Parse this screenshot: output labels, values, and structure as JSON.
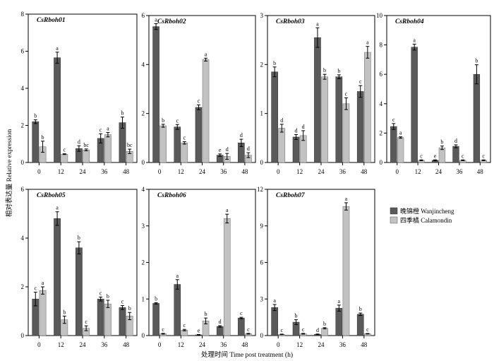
{
  "figure": {
    "ylabel": "相对表达量 Relative expression",
    "xlabel": "处理时间 Time post treatment (h)"
  },
  "legend": {
    "position": "right",
    "entries": [
      {
        "label": "晚锦橙 Wanjincheng",
        "color": "#5a5a5a"
      },
      {
        "label": "四季橘 Calamondin",
        "color": "#c2c2c2"
      }
    ]
  },
  "colors": {
    "series1": "#5a5a5a",
    "series2": "#c2c2c2",
    "axis": "#000000"
  },
  "chart_data": [
    {
      "type": "bar",
      "title": "CsRboh01",
      "categories": [
        "0",
        "12",
        "24",
        "36",
        "48"
      ],
      "ylim": [
        0,
        8
      ],
      "yticks": [
        0,
        2,
        4,
        6,
        8
      ],
      "series": [
        {
          "name": "晚锦橙 Wanjincheng",
          "values": [
            2.2,
            5.65,
            0.75,
            1.3,
            2.15
          ],
          "errors": [
            0.1,
            0.3,
            0.15,
            0.25,
            0.3
          ],
          "labels": [
            "b",
            "a",
            "d",
            "c",
            "b"
          ]
        },
        {
          "name": "四季橘 Calamondin",
          "values": [
            0.85,
            0.45,
            0.68,
            1.5,
            0.6
          ],
          "errors": [
            0.3,
            0.02,
            0.05,
            0.12,
            0.12
          ],
          "labels": [
            "b",
            "c",
            "bc",
            "a",
            "bc"
          ]
        }
      ]
    },
    {
      "type": "bar",
      "title": "CsRboh02",
      "categories": [
        "0",
        "12",
        "24",
        "36",
        "48"
      ],
      "ylim": [
        0,
        6
      ],
      "yticks": [
        0,
        2,
        4,
        6
      ],
      "series": [
        {
          "name": "晚锦橙 Wanjincheng",
          "values": [
            5.55,
            1.45,
            2.25,
            0.3,
            0.8
          ],
          "errors": [
            0.12,
            0.1,
            0.1,
            0.05,
            0.15
          ],
          "labels": [
            "a",
            "c",
            "c",
            "e",
            "d"
          ]
        },
        {
          "name": "四季橘 Calamondin",
          "values": [
            1.5,
            0.8,
            4.2,
            0.25,
            0.3
          ],
          "errors": [
            0.06,
            0.05,
            0.06,
            0.12,
            0.1
          ],
          "labels": [
            "b",
            "c",
            "a",
            "d",
            "d"
          ]
        }
      ]
    },
    {
      "type": "bar",
      "title": "CsRboh03",
      "categories": [
        "0",
        "12",
        "24",
        "36",
        "48"
      ],
      "ylim": [
        0,
        3
      ],
      "yticks": [
        0,
        1,
        2,
        3
      ],
      "series": [
        {
          "name": "晚锦橙 Wanjincheng",
          "values": [
            1.85,
            0.52,
            2.55,
            1.75,
            1.45
          ],
          "errors": [
            0.1,
            0.05,
            0.2,
            0.04,
            0.12
          ],
          "labels": [
            "b",
            "d",
            "a",
            "b",
            "c"
          ]
        },
        {
          "name": "四季橘 Calamondin",
          "values": [
            0.7,
            0.55,
            1.75,
            1.2,
            2.25
          ],
          "errors": [
            0.08,
            0.1,
            0.05,
            0.12,
            0.12
          ],
          "labels": [
            "d",
            "d",
            "b",
            "c",
            "a"
          ]
        }
      ]
    },
    {
      "type": "bar",
      "title": "CsRboh04",
      "categories": [
        "0",
        "12",
        "24",
        "36",
        "48"
      ],
      "ylim": [
        0,
        10
      ],
      "yticks": [
        0,
        2,
        4,
        6,
        8,
        10
      ],
      "series": [
        {
          "name": "晚锦橙 Wanjincheng",
          "values": [
            2.45,
            7.85,
            0.15,
            1.1,
            6.0
          ],
          "errors": [
            0.2,
            0.2,
            0.03,
            0.1,
            0.65
          ],
          "labels": [
            "c",
            "a",
            "e",
            "d",
            "b"
          ]
        },
        {
          "name": "四季橘 Calamondin",
          "values": [
            1.7,
            0.15,
            1.0,
            0.15,
            0.15
          ],
          "errors": [
            0.05,
            0.03,
            0.12,
            0.03,
            0.03
          ],
          "labels": [
            "a",
            "c",
            "b",
            "c",
            "c"
          ]
        }
      ]
    },
    {
      "type": "bar",
      "title": "CsRboh05",
      "categories": [
        "0",
        "12",
        "24",
        "36",
        "48"
      ],
      "ylim": [
        0,
        6
      ],
      "yticks": [
        0,
        2,
        4,
        6
      ],
      "series": [
        {
          "name": "晚锦橙 Wanjincheng",
          "values": [
            1.5,
            4.8,
            3.6,
            1.5,
            1.15
          ],
          "errors": [
            0.28,
            0.28,
            0.25,
            0.08,
            0.08
          ],
          "labels": [
            "c",
            "a",
            "b",
            "c",
            "c"
          ]
        },
        {
          "name": "四季橘 Calamondin",
          "values": [
            1.85,
            0.65,
            0.3,
            1.3,
            0.8
          ],
          "errors": [
            0.15,
            0.15,
            0.1,
            0.15,
            0.15
          ],
          "labels": [
            "a",
            "b",
            "c",
            "b",
            "b"
          ]
        }
      ]
    },
    {
      "type": "bar",
      "title": "CsRboh06",
      "categories": [
        "0",
        "12",
        "24",
        "36",
        "48"
      ],
      "ylim": [
        0,
        4
      ],
      "yticks": [
        0,
        1,
        2,
        3,
        4
      ],
      "series": [
        {
          "name": "晚锦橙 Wanjincheng",
          "values": [
            0.88,
            1.4,
            0.02,
            0.25,
            0.48
          ],
          "errors": [
            0.02,
            0.13,
            0.01,
            0.02,
            0.02
          ],
          "labels": [
            "b",
            "a",
            "e",
            "d",
            "c"
          ]
        },
        {
          "name": "四季橘 Calamondin",
          "values": [
            0.05,
            0.15,
            0.4,
            3.2,
            0.05
          ],
          "errors": [
            0.01,
            0.02,
            0.08,
            0.12,
            0.01
          ],
          "labels": [
            "c",
            "c",
            "b",
            "a",
            "c"
          ]
        }
      ]
    },
    {
      "type": "bar",
      "title": "CsRboh07",
      "categories": [
        "0",
        "12",
        "24",
        "36",
        "48"
      ],
      "ylim": [
        0,
        12
      ],
      "yticks": [
        0,
        3,
        6,
        9,
        12
      ],
      "series": [
        {
          "name": "晚锦橙 Wanjincheng",
          "values": [
            2.3,
            1.1,
            0.1,
            2.25,
            1.75
          ],
          "errors": [
            0.25,
            0.2,
            0.03,
            0.25,
            0.1
          ],
          "labels": [
            "a",
            "b",
            "d",
            "a",
            "b"
          ]
        },
        {
          "name": "四季橘 Calamondin",
          "values": [
            0.1,
            0.15,
            0.6,
            10.6,
            0.15
          ],
          "errors": [
            0.02,
            0.03,
            0.05,
            0.3,
            0.02
          ],
          "labels": [
            "c",
            "c",
            "b",
            "a",
            "c"
          ]
        }
      ]
    }
  ]
}
